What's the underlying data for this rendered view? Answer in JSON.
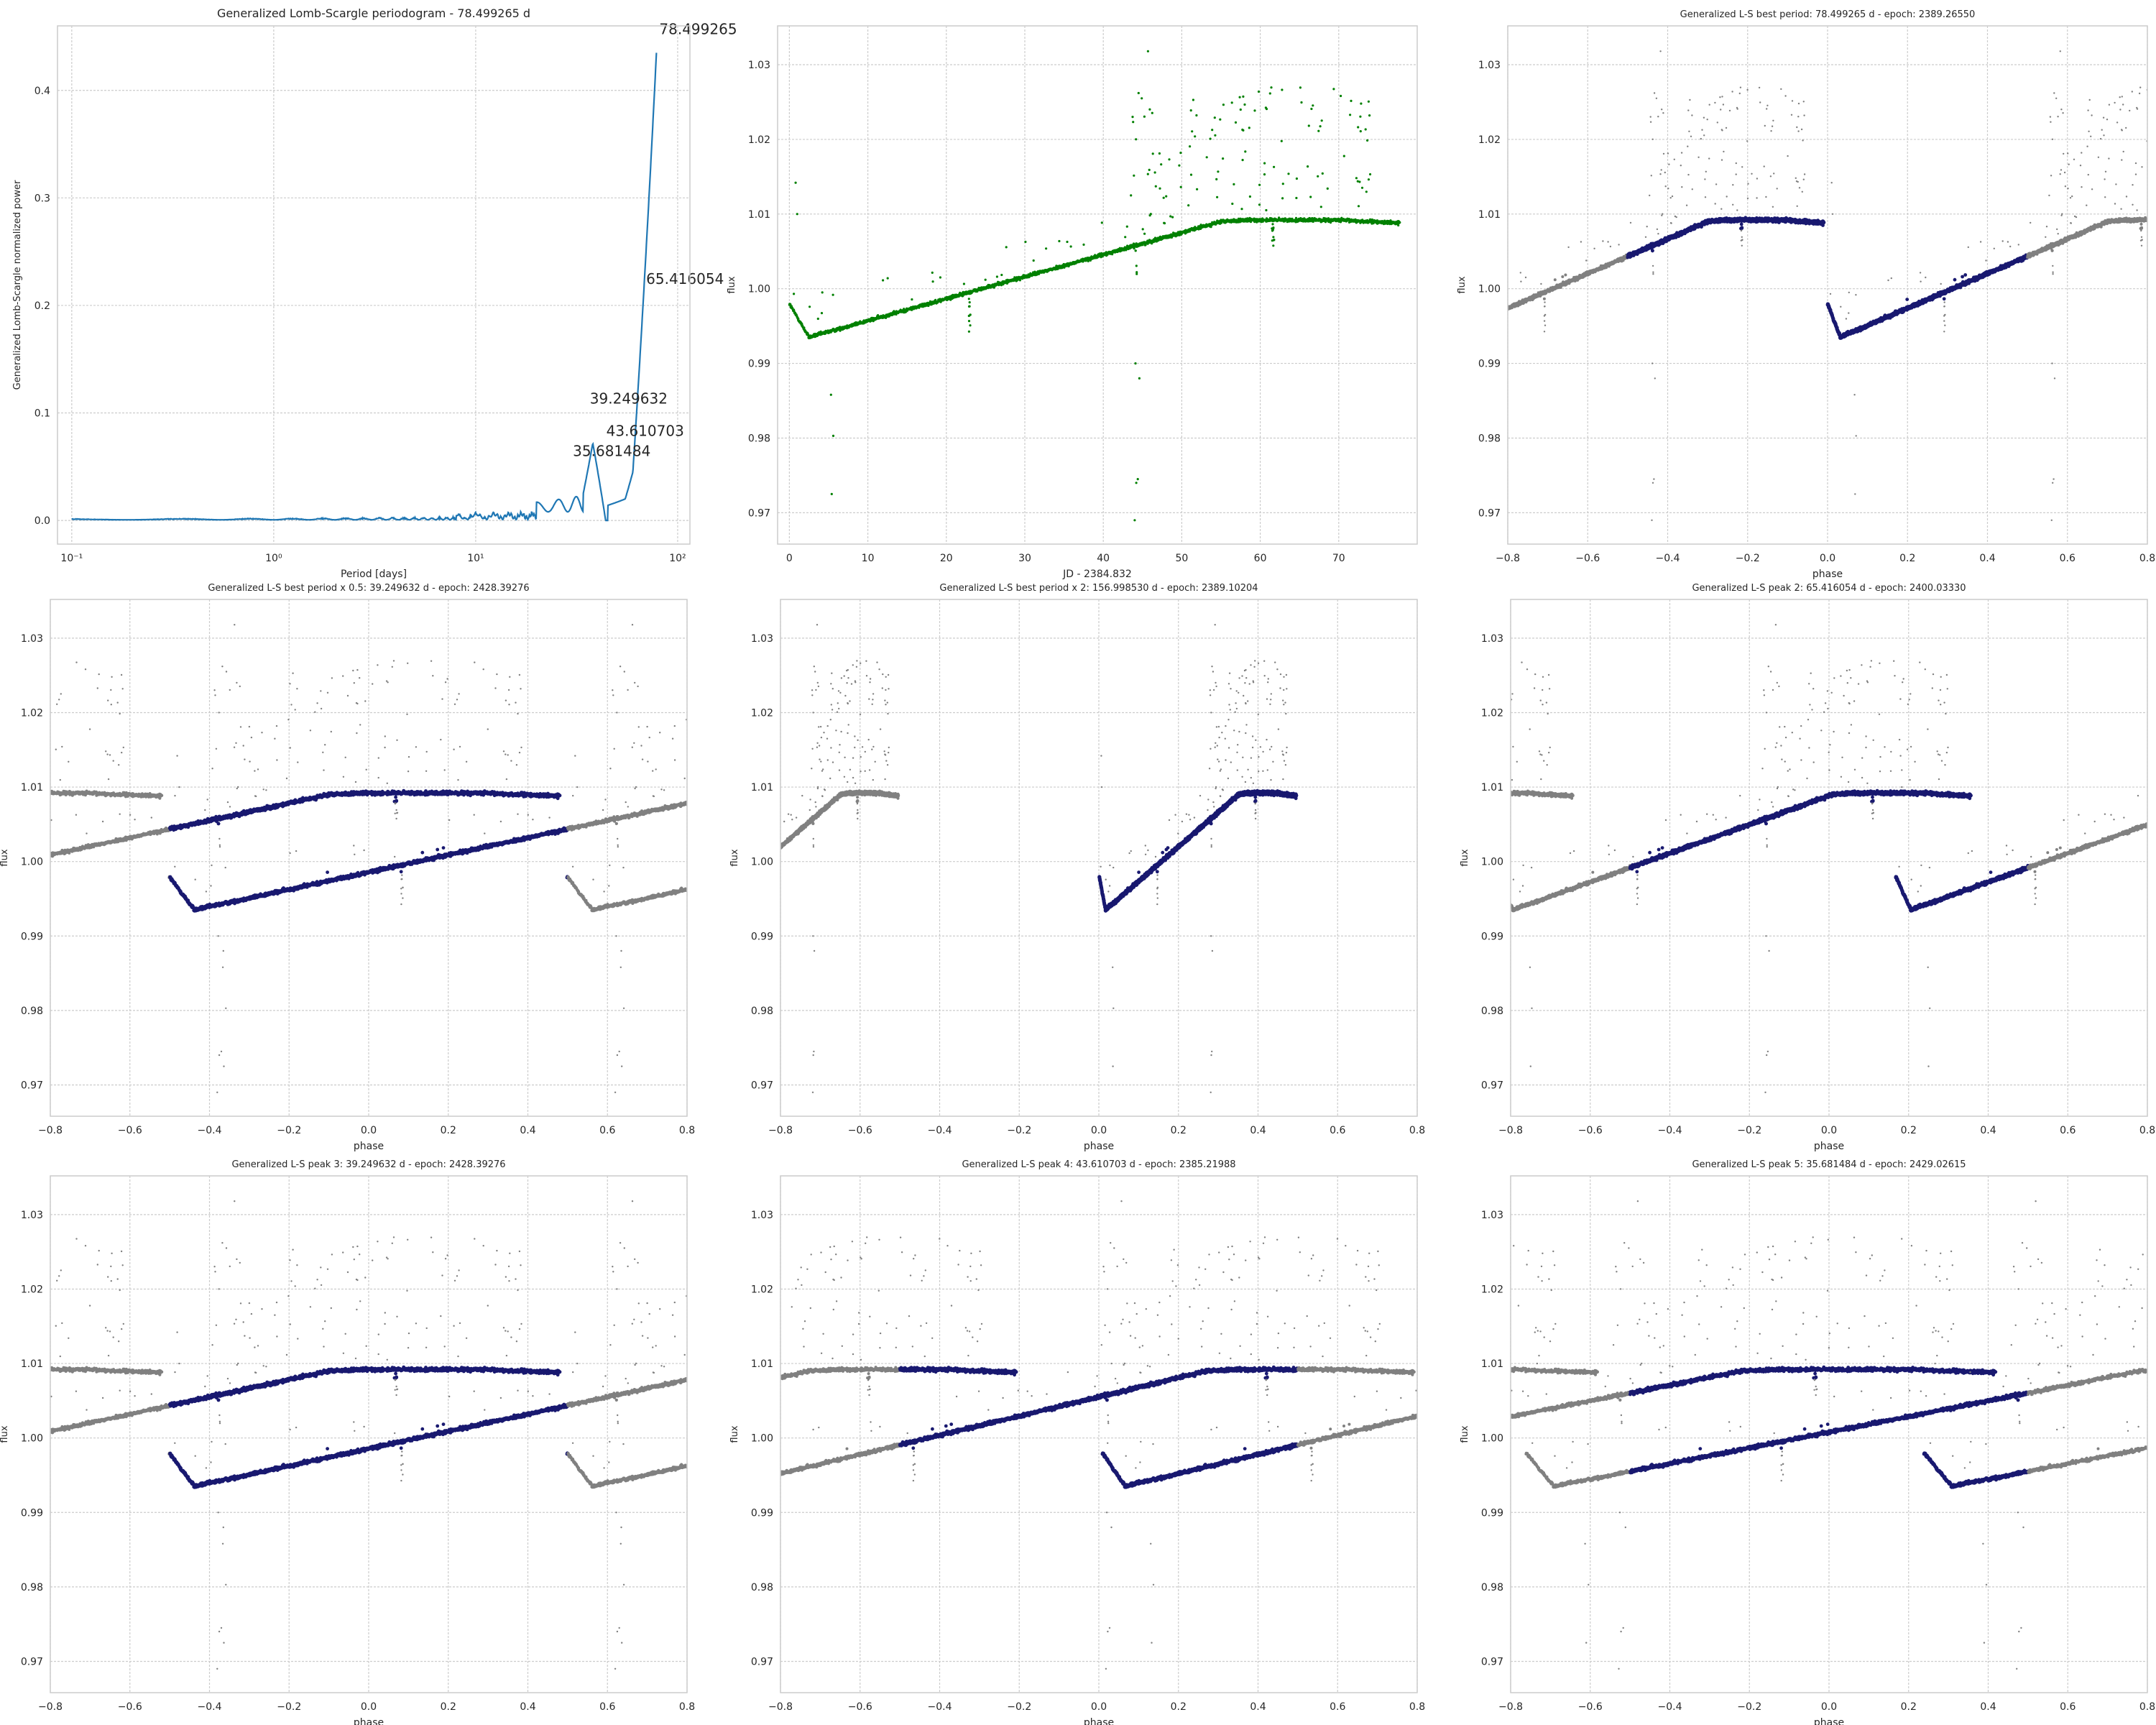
{
  "colors": {
    "periodogram_line": "#1f77b4",
    "lightcurve_points": "#008000",
    "phased_points": "#191970",
    "unphased_points": "#808080",
    "grid": "#cccccc",
    "axes_edge": "#cccccc",
    "text": "#262626"
  },
  "chart_data": [
    {
      "type": "line",
      "title": "Generalized Lomb-Scargle periodogram - 78.499265 d",
      "xlabel": "Period [days]",
      "ylabel": "Generalized Lomb-Scargle normalized power",
      "xscale": "log",
      "xlim": [
        0.085,
        115
      ],
      "ylim": [
        -0.022,
        0.46
      ],
      "xticks": [
        0.1,
        1,
        10,
        100
      ],
      "xtick_labels": [
        "10⁻¹",
        "10⁰",
        "10¹",
        "10²"
      ],
      "yticks": [
        0.0,
        0.1,
        0.2,
        0.3,
        0.4
      ],
      "ytick_labels": [
        "0.0",
        "0.1",
        "0.2",
        "0.3",
        "0.4"
      ],
      "grid": true,
      "peak_annotations": [
        {
          "label": "78.499265",
          "x": 78.499265,
          "y": 0.435
        },
        {
          "label": "65.416054",
          "x": 65.416054,
          "y": 0.22
        },
        {
          "label": "39.249632",
          "x": 39.249632,
          "y": 0.098
        },
        {
          "label": "43.610703",
          "x": 43.610703,
          "y": 0.08
        },
        {
          "label": "35.681484",
          "x": 35.681484,
          "y": 0.072
        }
      ]
    },
    {
      "type": "scatter",
      "title": "",
      "xlabel": "JD - 2384.832",
      "ylabel": "flux",
      "xlim": [
        -1.5,
        80
      ],
      "ylim": [
        0.9658,
        1.0352
      ],
      "xticks": [
        0,
        10,
        20,
        30,
        40,
        50,
        60,
        70
      ],
      "xtick_labels": [
        "0",
        "10",
        "20",
        "30",
        "40",
        "50",
        "60",
        "70"
      ],
      "yticks": [
        0.97,
        0.98,
        0.99,
        1.0,
        1.01,
        1.02,
        1.03
      ],
      "ytick_labels": [
        "0.97",
        "0.98",
        "0.99",
        "1.00",
        "1.01",
        "1.02",
        "1.03"
      ],
      "grid": true
    },
    {
      "type": "scatter",
      "title": "Generalized L-S best period: 78.499265 d - epoch: 2389.26550",
      "xlabel": "phase",
      "ylabel": "flux",
      "period": 78.499265,
      "phase_offset": 0.0,
      "xlim": [
        -0.8,
        0.8
      ],
      "ylim": [
        0.9658,
        1.0352
      ],
      "grid": true
    },
    {
      "type": "scatter",
      "title": "Generalized L-S best period x 0.5: 39.249632 d - epoch: 2428.39276",
      "xlabel": "phase",
      "ylabel": "flux",
      "period": 39.249632,
      "phase_offset": 0.4985,
      "xlim": [
        -0.8,
        0.8
      ],
      "ylim": [
        0.9658,
        1.0352
      ],
      "grid": true
    },
    {
      "type": "scatter",
      "title": "Generalized L-S best period x 2: 156.998530 d - epoch: 2389.10204",
      "xlabel": "phase",
      "ylabel": "flux",
      "period": 156.99853,
      "phase_offset": 0.001,
      "xlim": [
        -0.8,
        0.8
      ],
      "ylim": [
        0.9658,
        1.0352
      ],
      "grid": true
    },
    {
      "type": "scatter",
      "title": "Generalized L-S peak 2: 65.416054 d - epoch: 2400.03330",
      "xlabel": "phase",
      "ylabel": "flux",
      "period": 65.416054,
      "phase_offset": 0.1676,
      "xlim": [
        -0.8,
        0.8
      ],
      "ylim": [
        0.9658,
        1.0352
      ],
      "grid": true
    },
    {
      "type": "scatter",
      "title": "Generalized L-S peak 3: 39.249632 d - epoch: 2428.39276",
      "xlabel": "phase",
      "ylabel": "flux",
      "period": 39.249632,
      "phase_offset": 0.4985,
      "xlim": [
        -0.8,
        0.8
      ],
      "ylim": [
        0.9658,
        1.0352
      ],
      "grid": true
    },
    {
      "type": "scatter",
      "title": "Generalized L-S peak 4: 43.610703 d - epoch: 2385.21988",
      "xlabel": "phase",
      "ylabel": "flux",
      "period": 43.610703,
      "phase_offset": 0.0089,
      "xlim": [
        -0.8,
        0.8
      ],
      "ylim": [
        0.9658,
        1.0352
      ],
      "grid": true
    },
    {
      "type": "scatter",
      "title": "Generalized L-S peak 5: 35.681484 d - epoch: 2429.02615",
      "xlabel": "phase",
      "ylabel": "flux",
      "period": 35.681484,
      "phase_offset": 0.2386,
      "xlim": [
        -0.8,
        0.8
      ],
      "ylim": [
        0.9658,
        1.0352
      ],
      "grid": true
    }
  ],
  "phase_axis": {
    "xticks": [
      -0.8,
      -0.6,
      -0.4,
      -0.2,
      0.0,
      0.2,
      0.4,
      0.6,
      0.8
    ],
    "xtick_labels": [
      "−0.8",
      "−0.6",
      "−0.4",
      "−0.2",
      "0.0",
      "0.2",
      "0.4",
      "0.6",
      "0.8"
    ],
    "yticks": [
      0.97,
      0.98,
      0.99,
      1.0,
      1.01,
      1.02,
      1.03
    ],
    "ytick_labels": [
      "0.97",
      "0.98",
      "0.99",
      "1.00",
      "1.01",
      "1.02",
      "1.03"
    ]
  }
}
